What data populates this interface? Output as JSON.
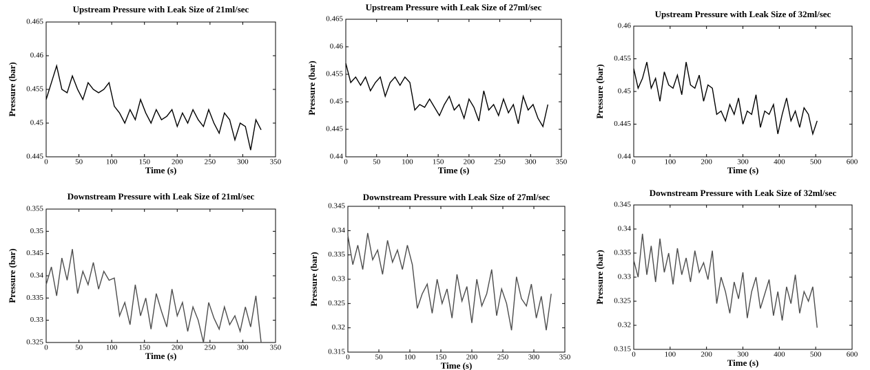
{
  "chart_data": [
    {
      "type": "line",
      "title": "Upstream Pressure with Leak Size of 21ml/sec",
      "xlabel": "Time (s)",
      "ylabel": "Pressure (bar)",
      "color": "#000000",
      "x": [
        0,
        8,
        16,
        24,
        32,
        40,
        48,
        56,
        64,
        72,
        80,
        88,
        96,
        104,
        112,
        120,
        128,
        136,
        144,
        152,
        160,
        168,
        176,
        184,
        192,
        200,
        208,
        216,
        224,
        232,
        240,
        248,
        256,
        264,
        272,
        280,
        288,
        296,
        304,
        312,
        320,
        328
      ],
      "values": [
        0.4535,
        0.456,
        0.4585,
        0.455,
        0.4545,
        0.457,
        0.455,
        0.4535,
        0.456,
        0.455,
        0.4545,
        0.455,
        0.456,
        0.4525,
        0.4515,
        0.45,
        0.452,
        0.4505,
        0.4535,
        0.4515,
        0.45,
        0.452,
        0.4505,
        0.451,
        0.452,
        0.4495,
        0.4515,
        0.45,
        0.452,
        0.4505,
        0.4495,
        0.452,
        0.45,
        0.4485,
        0.4515,
        0.4505,
        0.4475,
        0.45,
        0.4495,
        0.446,
        0.4505,
        0.449
      ],
      "xlim": [
        0,
        350
      ],
      "xticks": [
        0,
        50,
        100,
        150,
        200,
        250,
        300,
        350
      ],
      "ylim": [
        0.445,
        0.465
      ],
      "yticks": [
        0.445,
        0.45,
        0.455,
        0.46,
        0.465
      ]
    },
    {
      "type": "line",
      "title": "Upstream Pressure with Leak Size of 27ml/sec",
      "xlabel": "Time (s)",
      "ylabel": "Pressure (bar)",
      "color": "#000000",
      "x": [
        0,
        8,
        16,
        24,
        32,
        40,
        48,
        56,
        64,
        72,
        80,
        88,
        96,
        104,
        112,
        120,
        128,
        136,
        144,
        152,
        160,
        168,
        176,
        184,
        192,
        200,
        208,
        216,
        224,
        232,
        240,
        248,
        256,
        264,
        272,
        280,
        288,
        296,
        304,
        312,
        320,
        328
      ],
      "values": [
        0.457,
        0.4535,
        0.4545,
        0.453,
        0.4545,
        0.452,
        0.4535,
        0.4545,
        0.451,
        0.4535,
        0.4545,
        0.453,
        0.4545,
        0.4535,
        0.4485,
        0.4495,
        0.449,
        0.4505,
        0.449,
        0.4475,
        0.4495,
        0.451,
        0.4485,
        0.4495,
        0.447,
        0.4505,
        0.449,
        0.4465,
        0.452,
        0.4485,
        0.4495,
        0.4475,
        0.4505,
        0.448,
        0.4495,
        0.446,
        0.451,
        0.4485,
        0.4495,
        0.447,
        0.4455,
        0.4495
      ],
      "xlim": [
        0,
        350
      ],
      "xticks": [
        0,
        50,
        100,
        150,
        200,
        250,
        300,
        350
      ],
      "ylim": [
        0.44,
        0.465
      ],
      "yticks": [
        0.44,
        0.445,
        0.45,
        0.455,
        0.46,
        0.465
      ]
    },
    {
      "type": "line",
      "title": "Upstream Pressure with Leak Size of 32ml/sec",
      "xlabel": "Time (s)",
      "ylabel": "Pressure (bar)",
      "color": "#000000",
      "x": [
        0,
        12,
        24,
        36,
        48,
        60,
        72,
        84,
        96,
        108,
        120,
        132,
        144,
        156,
        168,
        180,
        192,
        204,
        216,
        228,
        240,
        252,
        264,
        276,
        288,
        300,
        312,
        324,
        336,
        348,
        360,
        372,
        384,
        396,
        408,
        420,
        432,
        444,
        456,
        468,
        480,
        492,
        504
      ],
      "values": [
        0.4535,
        0.4505,
        0.452,
        0.4545,
        0.4505,
        0.452,
        0.4485,
        0.453,
        0.451,
        0.4505,
        0.4525,
        0.4495,
        0.4545,
        0.451,
        0.4505,
        0.4525,
        0.4485,
        0.451,
        0.4505,
        0.4465,
        0.447,
        0.4455,
        0.448,
        0.4465,
        0.449,
        0.445,
        0.447,
        0.4465,
        0.4495,
        0.4445,
        0.447,
        0.4465,
        0.448,
        0.4435,
        0.4465,
        0.449,
        0.4455,
        0.447,
        0.4445,
        0.4475,
        0.4465,
        0.4435,
        0.4455
      ],
      "xlim": [
        0,
        600
      ],
      "xticks": [
        0,
        100,
        200,
        300,
        400,
        500,
        600
      ],
      "ylim": [
        0.44,
        0.46
      ],
      "yticks": [
        0.44,
        0.445,
        0.45,
        0.455,
        0.46
      ]
    },
    {
      "type": "line",
      "title": "Downstream Pressure with Leak Size of 21ml/sec",
      "xlabel": "Time (s)",
      "ylabel": "Pressure (bar)",
      "color": "#4d4d4d",
      "x": [
        0,
        8,
        16,
        24,
        32,
        40,
        48,
        56,
        64,
        72,
        80,
        88,
        96,
        104,
        112,
        120,
        128,
        136,
        144,
        152,
        160,
        168,
        176,
        184,
        192,
        200,
        208,
        216,
        224,
        232,
        240,
        248,
        256,
        264,
        272,
        280,
        288,
        296,
        304,
        312,
        320,
        328
      ],
      "values": [
        0.338,
        0.342,
        0.3355,
        0.344,
        0.339,
        0.346,
        0.336,
        0.341,
        0.338,
        0.343,
        0.337,
        0.341,
        0.339,
        0.3395,
        0.331,
        0.334,
        0.329,
        0.338,
        0.331,
        0.335,
        0.328,
        0.336,
        0.332,
        0.3285,
        0.337,
        0.331,
        0.334,
        0.3275,
        0.333,
        0.33,
        0.325,
        0.334,
        0.3305,
        0.328,
        0.333,
        0.329,
        0.331,
        0.3275,
        0.333,
        0.3285,
        0.3355,
        0.325
      ],
      "xlim": [
        0,
        350
      ],
      "xticks": [
        0,
        50,
        100,
        150,
        200,
        250,
        300,
        350
      ],
      "ylim": [
        0.325,
        0.355
      ],
      "yticks": [
        0.325,
        0.33,
        0.335,
        0.34,
        0.345,
        0.35,
        0.355
      ]
    },
    {
      "type": "line",
      "title": "Downstream Pressure with Leak Size of 27ml/sec",
      "xlabel": "Time (s)",
      "ylabel": "Pressure (bar)",
      "color": "#4d4d4d",
      "x": [
        0,
        8,
        16,
        24,
        32,
        40,
        48,
        56,
        64,
        72,
        80,
        88,
        96,
        104,
        112,
        120,
        128,
        136,
        144,
        152,
        160,
        168,
        176,
        184,
        192,
        200,
        208,
        216,
        224,
        232,
        240,
        248,
        256,
        264,
        272,
        280,
        288,
        296,
        304,
        312,
        320,
        328
      ],
      "values": [
        0.339,
        0.333,
        0.337,
        0.332,
        0.3395,
        0.334,
        0.336,
        0.331,
        0.338,
        0.3335,
        0.336,
        0.332,
        0.337,
        0.333,
        0.324,
        0.327,
        0.329,
        0.323,
        0.33,
        0.325,
        0.328,
        0.322,
        0.331,
        0.3255,
        0.3285,
        0.321,
        0.33,
        0.3245,
        0.327,
        0.332,
        0.3225,
        0.328,
        0.325,
        0.3195,
        0.3305,
        0.326,
        0.3245,
        0.329,
        0.322,
        0.3265,
        0.3195,
        0.327
      ],
      "xlim": [
        0,
        350
      ],
      "xticks": [
        0,
        50,
        100,
        150,
        200,
        250,
        300,
        350
      ],
      "ylim": [
        0.315,
        0.345
      ],
      "yticks": [
        0.315,
        0.32,
        0.325,
        0.33,
        0.335,
        0.34,
        0.345
      ]
    },
    {
      "type": "line",
      "title": "Downstream Pressure with Leak Size of 32ml/sec",
      "xlabel": "Time (s)",
      "ylabel": "Pressure (bar)",
      "color": "#4d4d4d",
      "x": [
        0,
        12,
        24,
        36,
        48,
        60,
        72,
        84,
        96,
        108,
        120,
        132,
        144,
        156,
        168,
        180,
        192,
        204,
        216,
        228,
        240,
        252,
        264,
        276,
        288,
        300,
        312,
        324,
        336,
        348,
        360,
        372,
        384,
        396,
        408,
        420,
        432,
        444,
        456,
        468,
        480,
        492,
        504
      ],
      "values": [
        0.3335,
        0.33,
        0.339,
        0.3305,
        0.3365,
        0.329,
        0.338,
        0.331,
        0.335,
        0.3285,
        0.336,
        0.3305,
        0.334,
        0.329,
        0.3355,
        0.331,
        0.333,
        0.3295,
        0.3355,
        0.3245,
        0.33,
        0.327,
        0.3225,
        0.329,
        0.3255,
        0.331,
        0.3215,
        0.327,
        0.33,
        0.3235,
        0.3265,
        0.3295,
        0.322,
        0.327,
        0.321,
        0.328,
        0.3245,
        0.3305,
        0.3225,
        0.327,
        0.325,
        0.328,
        0.3195
      ],
      "xlim": [
        0,
        600
      ],
      "xticks": [
        0,
        100,
        200,
        300,
        400,
        500,
        600
      ],
      "ylim": [
        0.315,
        0.345
      ],
      "yticks": [
        0.315,
        0.32,
        0.325,
        0.33,
        0.335,
        0.34,
        0.345
      ]
    }
  ]
}
